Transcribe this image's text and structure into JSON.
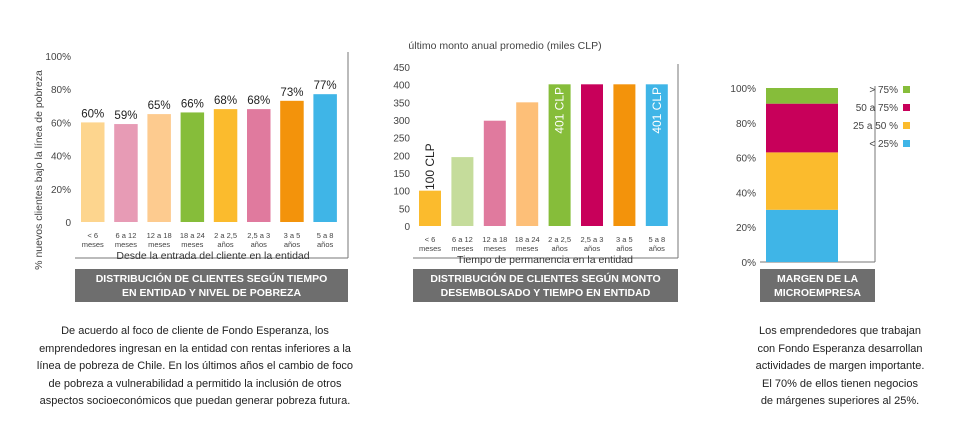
{
  "chart_data": [
    {
      "type": "bar",
      "ylabel": "% nuevos clientes bajo la línea de pobreza",
      "xlabel": "Desde la entrada del cliente en la entidad",
      "yticks": [
        "100%",
        "80%",
        "60%",
        "40%",
        "20%",
        "0"
      ],
      "ylim": [
        0,
        100
      ],
      "categories": [
        [
          "< 6",
          "meses"
        ],
        [
          "6 a 12",
          "meses"
        ],
        [
          "12 a 18",
          "meses"
        ],
        [
          "18 a 24",
          "meses"
        ],
        [
          "2 a 2,5",
          "años"
        ],
        [
          "2,5 a 3",
          "años"
        ],
        [
          "3 a 5",
          "años"
        ],
        [
          "5 a 8",
          "años"
        ]
      ],
      "values": [
        60,
        59,
        65,
        66,
        68,
        68,
        73,
        77
      ],
      "labels": [
        "60%",
        "59%",
        "65%",
        "66%",
        "68%",
        "68%",
        "73%",
        "77%"
      ],
      "colors": [
        "#fdd58e",
        "#e79bb5",
        "#fdcb8f",
        "#86bd3a",
        "#fbbb2d",
        "#e07a9e",
        "#f3930b",
        "#3fb5e7"
      ],
      "banner": "DISTRIBUCIÓN  DE CLIENTES SEGÚN TIEMPO EN ENTIDAD Y NIVEL DE POBREZA",
      "grid": false
    },
    {
      "type": "bar",
      "title": "último monto anual promedio (miles CLP)",
      "xlabel": "Tiempo de permanencia en la entidad",
      "yticks": [
        "450",
        "400",
        "350",
        "300",
        "250",
        "200",
        "150",
        "100",
        "50",
        "0"
      ],
      "ylim": [
        0,
        450
      ],
      "categories": [
        [
          "< 6",
          "meses"
        ],
        [
          "6 a 12",
          "meses"
        ],
        [
          "12 a 18",
          "meses"
        ],
        [
          "18 a 24",
          "meses"
        ],
        [
          "2 a 2,5",
          "años"
        ],
        [
          "2,5 a 3",
          "años"
        ],
        [
          "3 a 5",
          "años"
        ],
        [
          "5 a 8",
          "años"
        ]
      ],
      "values": [
        100,
        195,
        298,
        350,
        401,
        401,
        401,
        401
      ],
      "value_labels": [
        "100 CLP",
        "",
        "",
        "",
        "401 CLP",
        "",
        "",
        "401 CLP"
      ],
      "colors": [
        "#fbbb2d",
        "#c5dc9b",
        "#e07a9e",
        "#fdbf78",
        "#86bd3a",
        "#c8005a",
        "#f3930b",
        "#3fb5e7"
      ],
      "banner": "DISTRIBUCIÓN  DE CLIENTES SEGÚN MONTO DESEMBOLSADO Y TIEMPO EN ENTIDAD",
      "grid": false
    },
    {
      "type": "bar",
      "stacked": true,
      "yticks": [
        "100%",
        "80%",
        "60%",
        "40%",
        "20%",
        "0%"
      ],
      "ylim": [
        0,
        100
      ],
      "series": [
        {
          "name": "< 25%",
          "value": 30,
          "color": "#3fb5e7"
        },
        {
          "name": "25 a 50 %",
          "value": 33,
          "color": "#fbbb2d"
        },
        {
          "name": "50 a 75%",
          "value": 28,
          "color": "#c8005a"
        },
        {
          "name": "> 75%",
          "value": 9,
          "color": "#86bd3a"
        }
      ],
      "legend_position": "right",
      "banner": "MARGEN DE LA MICROEMPRESA",
      "grid": false
    }
  ],
  "captions": {
    "left": [
      "De acuerdo al foco de cliente de Fondo Esperanza, los",
      "emprendedores ingresan en la entidad con rentas inferiores a la",
      "línea de pobreza de Chile. En los últimos años el cambio de foco",
      "de pobreza a vulnerabilidad a permitido la inclusión de otros",
      "aspectos socioeconómicos que puedan generar pobreza futura."
    ],
    "right": [
      "Los emprendedores que trabajan",
      "con Fondo Esperanza desarrollan",
      "actividades de margen importante.",
      "El 70% de ellos tienen negocios",
      "de márgenes superiores al 25%."
    ]
  }
}
